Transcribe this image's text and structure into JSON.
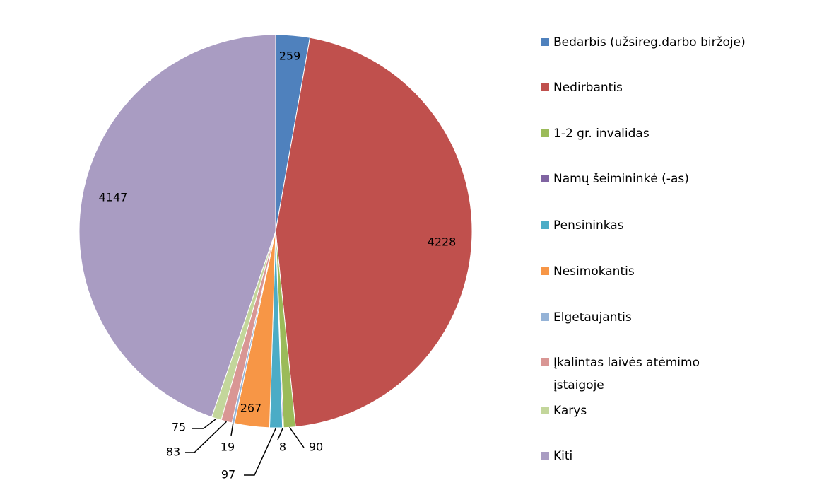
{
  "chart_data": {
    "type": "pie",
    "categories": [
      "Bedarbis (užsireg.darbo biržoje)",
      "Nedirbantis",
      "1-2 gr. invalidas",
      "Namų šeimininkė (-as)",
      "Pensininkas",
      "Nesimokantis",
      "Elgetaujantis",
      "Įkalintas laivės atėmimo įstaigoje",
      "Karys",
      "Kiti"
    ],
    "values": [
      259,
      4228,
      90,
      8,
      97,
      267,
      19,
      83,
      75,
      4147
    ],
    "colors": [
      "#4f81bd",
      "#c0504d",
      "#9bbb59",
      "#8064a2",
      "#4bacc6",
      "#f79646",
      "#95b3d7",
      "#d99694",
      "#c3d69b",
      "#a99cc2"
    ],
    "legend": "right"
  }
}
